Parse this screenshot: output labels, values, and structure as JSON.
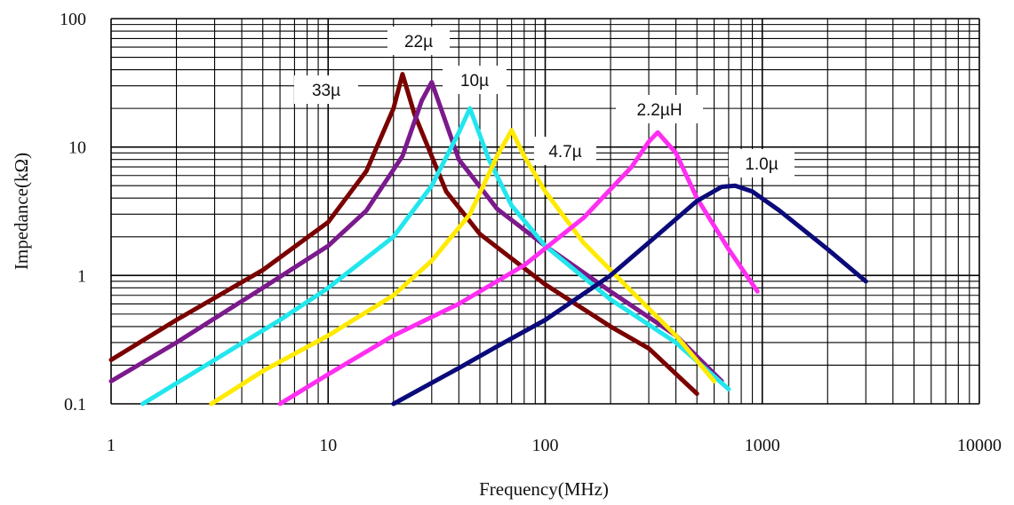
{
  "chart_data": {
    "type": "line",
    "title": "",
    "xlabel": "Frequency(MHz)",
    "ylabel": "Impedance(kΩ)",
    "xscale": "log",
    "yscale": "log",
    "xlim": [
      1,
      10000
    ],
    "ylim": [
      0.1,
      100
    ],
    "x_tick_labels": [
      "1",
      "10",
      "100",
      "1000",
      "10000"
    ],
    "y_tick_labels": [
      "0.1",
      "1",
      "10",
      "100"
    ],
    "grid": true,
    "series": [
      {
        "name": "33µ",
        "color": "#7a0000",
        "x": [
          1,
          2,
          5,
          10,
          15,
          20,
          22,
          25,
          35,
          50,
          100,
          200,
          300,
          500
        ],
        "y": [
          0.22,
          0.45,
          1.1,
          2.6,
          6.5,
          20,
          37,
          18,
          4.5,
          2.1,
          0.85,
          0.4,
          0.27,
          0.12
        ]
      },
      {
        "name": "22µ",
        "color": "#7b1a8c",
        "x": [
          1,
          2,
          5,
          10,
          15,
          22,
          27,
          30,
          40,
          60,
          100,
          200,
          400,
          650
        ],
        "y": [
          0.15,
          0.3,
          0.8,
          1.7,
          3.2,
          8.5,
          23,
          32,
          8,
          3.3,
          1.7,
          0.75,
          0.34,
          0.15
        ]
      },
      {
        "name": "10µ",
        "color": "#22e6ee",
        "x": [
          1.4,
          3,
          6,
          10,
          20,
          30,
          40,
          45,
          55,
          70,
          100,
          200,
          400,
          700
        ],
        "y": [
          0.1,
          0.22,
          0.45,
          0.8,
          2,
          5,
          13,
          20,
          8,
          3.5,
          1.7,
          0.65,
          0.3,
          0.13
        ]
      },
      {
        "name": "4.7µ",
        "color": "#ffea00",
        "x": [
          2.9,
          5,
          10,
          20,
          30,
          45,
          60,
          70,
          80,
          100,
          150,
          250,
          400,
          600
        ],
        "y": [
          0.1,
          0.18,
          0.34,
          0.7,
          1.3,
          3,
          8.5,
          13.5,
          8.5,
          4.5,
          1.8,
          0.75,
          0.34,
          0.15
        ]
      },
      {
        "name": "2.2µH",
        "color": "#ff2ef2",
        "x": [
          6,
          10,
          20,
          40,
          80,
          150,
          250,
          300,
          330,
          400,
          500,
          700,
          950
        ],
        "y": [
          0.1,
          0.17,
          0.34,
          0.6,
          1.2,
          2.8,
          7,
          11,
          13,
          9,
          4,
          1.6,
          0.75
        ]
      },
      {
        "name": "1.0µ",
        "color": "#0a0a7a",
        "x": [
          20,
          40,
          60,
          100,
          200,
          300,
          500,
          650,
          750,
          900,
          1200,
          2000,
          3000
        ],
        "y": [
          0.1,
          0.19,
          0.28,
          0.45,
          1,
          1.8,
          3.8,
          4.9,
          5,
          4.5,
          3.2,
          1.6,
          0.9
        ]
      }
    ],
    "annotations": [
      "33µ",
      "22µ",
      "10µ",
      "4.7µ",
      "2.2µH",
      "1.0µ"
    ]
  }
}
